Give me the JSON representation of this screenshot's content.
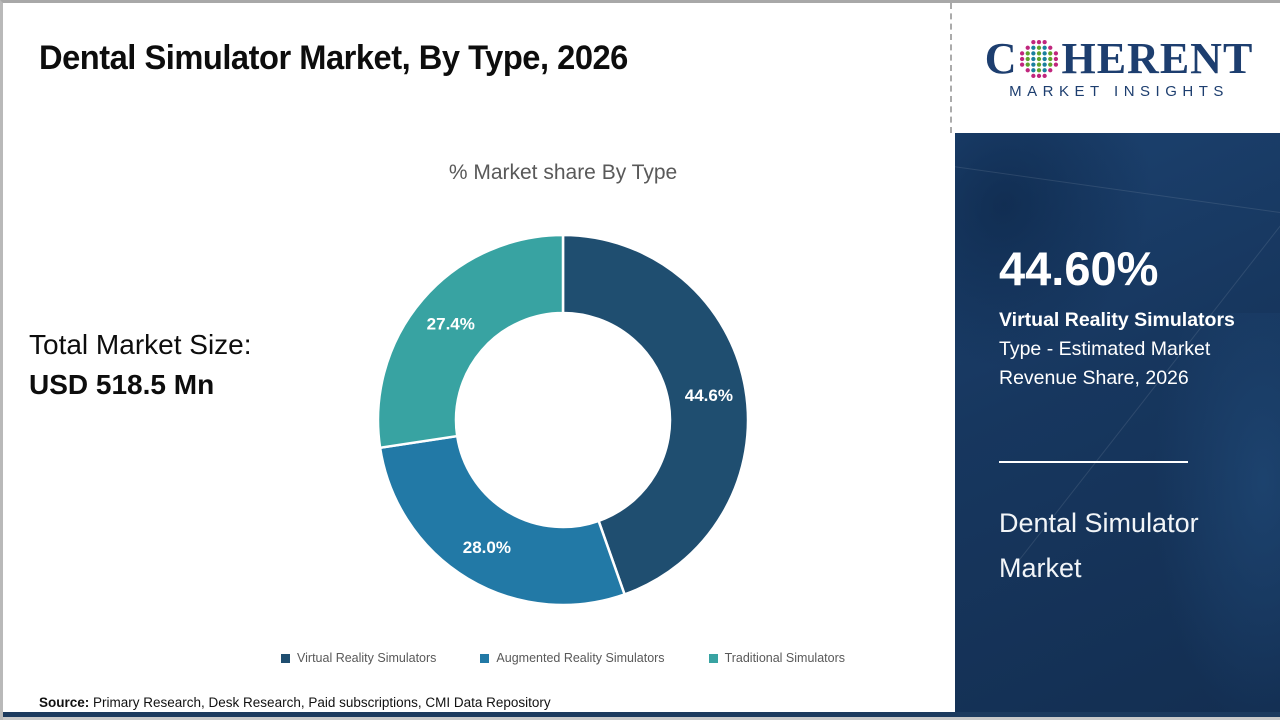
{
  "page": {
    "title": "Dental Simulator Market, By Type, 2026",
    "source_label": "Source:",
    "source_text": " Primary Research, Desk Research, Paid subscriptions, CMI Data Repository"
  },
  "left_panel": {
    "total_label": "Total Market Size:",
    "total_value": "USD 518.5 Mn"
  },
  "chart_data": {
    "type": "pie",
    "subtype": "donut",
    "title": "% Market share By Type",
    "categories": [
      "Virtual Reality Simulators",
      "Augmented Reality Simulators",
      "Traditional Simulators"
    ],
    "values": [
      44.6,
      28.0,
      27.4
    ],
    "data_labels": [
      "44.6%",
      "28.0%",
      "27.4%"
    ],
    "colors": [
      "#1f4e70",
      "#2279a6",
      "#38a3a2"
    ],
    "start_angle_deg": 0,
    "direction": "clockwise",
    "outer_radius": 185,
    "inner_radius": 107,
    "label_radius": 148,
    "legend_position": "bottom"
  },
  "logo": {
    "brand_left": "C",
    "brand_right": "HERENT",
    "brand_sub": "MARKET INSIGHTS",
    "navy": "#1d3e6f",
    "globe_ring_color": "#c0267d",
    "globe_dot_color_a": "#5fa32d",
    "globe_dot_color_b": "#1a7f9e"
  },
  "sidebar": {
    "stat_value": "44.60%",
    "stat_line1": "Virtual Reality Simulators",
    "stat_line2": "Type - Estimated Market",
    "stat_line3": "Revenue Share, 2026",
    "panel_title": "Dental Simulator Market",
    "panel_color": "#17375f"
  }
}
